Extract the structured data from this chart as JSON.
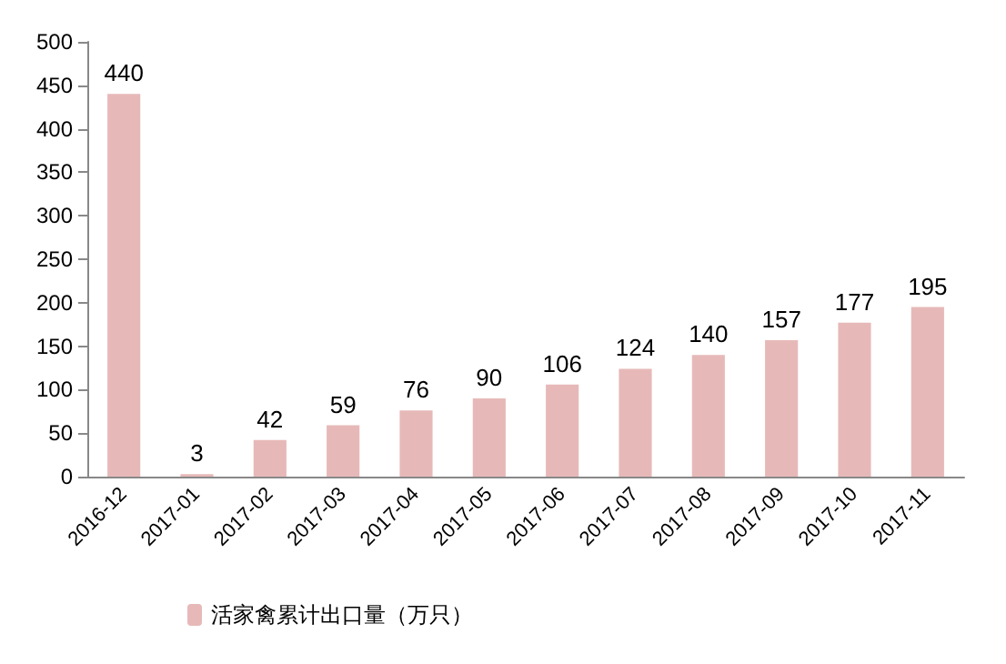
{
  "chart_data": {
    "type": "bar",
    "categories": [
      "2016-12",
      "2017-01",
      "2017-02",
      "2017-03",
      "2017-04",
      "2017-05",
      "2017-06",
      "2017-07",
      "2017-08",
      "2017-09",
      "2017-10",
      "2017-11"
    ],
    "series": [
      {
        "name": "活家禽累计出口量（万只）",
        "color": "#e6b9b8",
        "values": [
          440,
          3,
          42,
          59,
          76,
          90,
          106,
          124,
          140,
          157,
          177,
          195
        ]
      }
    ],
    "ylim": [
      0,
      500
    ],
    "yticks": [
      0,
      50,
      100,
      150,
      200,
      250,
      300,
      350,
      400,
      450,
      500
    ],
    "data_labels": true,
    "legend": "bottom",
    "grid": false
  }
}
